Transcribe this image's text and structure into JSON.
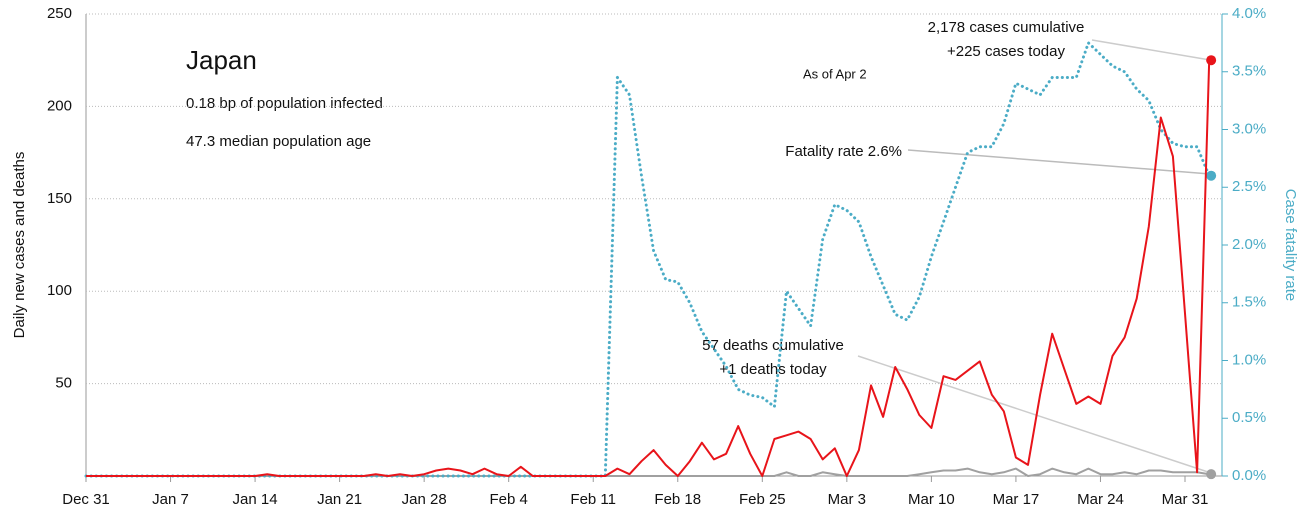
{
  "chart_data": {
    "type": "line",
    "title": "Japan",
    "subtitle": "As of Apr 2",
    "notes": [
      "0.18 bp of population infected",
      "47.3 median population age"
    ],
    "annotations": {
      "cases": [
        "2,178 cases cumulative",
        "+225 cases today"
      ],
      "fatality": "Fatality rate 2.6%",
      "deaths": [
        "57 deaths cumulative",
        "+1 deaths today"
      ]
    },
    "y_label": "Daily new cases and deaths",
    "y2_label": "Case fatality rate",
    "categories": [
      "Dec 31",
      null,
      null,
      null,
      null,
      null,
      null,
      "Jan 7",
      null,
      null,
      null,
      null,
      null,
      null,
      "Jan 14",
      null,
      null,
      null,
      null,
      null,
      null,
      "Jan 21",
      null,
      null,
      null,
      null,
      null,
      null,
      "Jan 28",
      null,
      null,
      null,
      null,
      null,
      null,
      "Feb 4",
      null,
      null,
      null,
      null,
      null,
      null,
      "Feb 11",
      null,
      null,
      null,
      null,
      null,
      null,
      "Feb 18",
      null,
      null,
      null,
      null,
      null,
      null,
      "Feb 25",
      null,
      null,
      null,
      null,
      null,
      null,
      "Mar 3",
      null,
      null,
      null,
      null,
      null,
      null,
      "Mar 10",
      null,
      null,
      null,
      null,
      null,
      null,
      "Mar 17",
      null,
      null,
      null,
      null,
      null,
      null,
      "Mar 24",
      null,
      null,
      null,
      null,
      null,
      null,
      "Mar 31",
      null,
      null
    ],
    "series": [
      {
        "name": "Daily new cases",
        "color": "#e8141a",
        "style": "solid",
        "values": [
          0,
          0,
          0,
          0,
          0,
          0,
          0,
          0,
          0,
          0,
          0,
          0,
          0,
          0,
          0,
          1,
          0,
          0,
          0,
          0,
          0,
          0,
          0,
          0,
          1,
          0,
          1,
          0,
          1,
          3,
          4,
          3,
          1,
          4,
          1,
          0,
          5,
          0,
          0,
          0,
          0,
          0,
          0,
          0,
          4,
          1,
          8,
          14,
          6,
          0,
          8,
          18,
          9,
          12,
          27,
          12,
          0,
          20,
          22,
          24,
          20,
          9,
          15,
          0,
          14,
          49,
          32,
          59,
          47,
          33,
          26,
          54,
          52,
          57,
          62,
          44,
          35,
          10,
          6,
          44,
          77,
          58,
          39,
          43,
          39,
          65,
          75,
          96,
          135,
          194,
          173,
          88,
          2,
          225
        ]
      },
      {
        "name": "Daily new deaths",
        "color": "#a0a0a0",
        "style": "solid",
        "values": [
          0,
          0,
          0,
          0,
          0,
          0,
          0,
          0,
          0,
          0,
          0,
          0,
          0,
          0,
          0,
          0,
          0,
          0,
          0,
          0,
          0,
          0,
          0,
          0,
          0,
          0,
          0,
          0,
          0,
          0,
          0,
          0,
          0,
          0,
          0,
          0,
          0,
          0,
          0,
          0,
          0,
          0,
          0,
          0,
          0,
          0,
          0,
          0,
          0,
          0,
          0,
          0,
          0,
          0,
          0,
          0,
          0,
          0,
          2,
          0,
          0,
          2,
          1,
          0,
          0,
          0,
          0,
          0,
          0,
          1,
          2,
          3,
          3,
          4,
          2,
          1,
          2,
          4,
          0,
          1,
          4,
          2,
          1,
          4,
          1,
          1,
          2,
          1,
          3,
          3,
          2,
          2,
          2,
          1
        ]
      },
      {
        "name": "Case fatality rate",
        "color": "#4bacc6",
        "style": "dotted",
        "axis": "y2",
        "values": [
          0,
          0,
          0,
          0,
          0,
          0,
          0,
          0,
          0,
          0,
          0,
          0,
          0,
          0,
          0,
          0,
          0,
          0,
          0,
          0,
          0,
          0,
          0,
          0,
          0,
          0,
          0,
          0,
          0,
          0,
          0,
          0,
          0,
          0,
          0,
          0,
          0,
          0,
          0,
          0,
          0,
          0,
          0,
          0,
          3.45,
          3.3,
          2.6,
          1.95,
          1.7,
          1.68,
          1.5,
          1.25,
          1.1,
          0.95,
          0.75,
          0.7,
          0.68,
          0.6,
          1.6,
          1.45,
          1.3,
          2.05,
          2.35,
          2.3,
          2.2,
          1.9,
          1.65,
          1.4,
          1.35,
          1.55,
          1.9,
          2.2,
          2.5,
          2.8,
          2.85,
          2.85,
          3.05,
          3.4,
          3.35,
          3.3,
          3.45,
          3.45,
          3.45,
          3.75,
          3.65,
          3.55,
          3.5,
          3.35,
          3.25,
          3.0,
          2.88,
          2.85,
          2.85,
          2.6
        ]
      }
    ],
    "ylim": [
      0,
      250
    ],
    "yticks": [
      50,
      100,
      150,
      200,
      250
    ],
    "y2lim": [
      0,
      4
    ],
    "y2ticks": [
      {
        "value": 0,
        "label": "0.0%"
      },
      {
        "value": 0.5,
        "label": "0.5%"
      },
      {
        "value": 1,
        "label": "1.0%"
      },
      {
        "value": 1.5,
        "label": "1.5%"
      },
      {
        "value": 2,
        "label": "2.0%"
      },
      {
        "value": 2.5,
        "label": "2.5%"
      },
      {
        "value": 3,
        "label": "3.0%"
      },
      {
        "value": 3.5,
        "label": "3.5%"
      },
      {
        "value": 4,
        "label": "4.0%"
      }
    ],
    "grid": true
  }
}
